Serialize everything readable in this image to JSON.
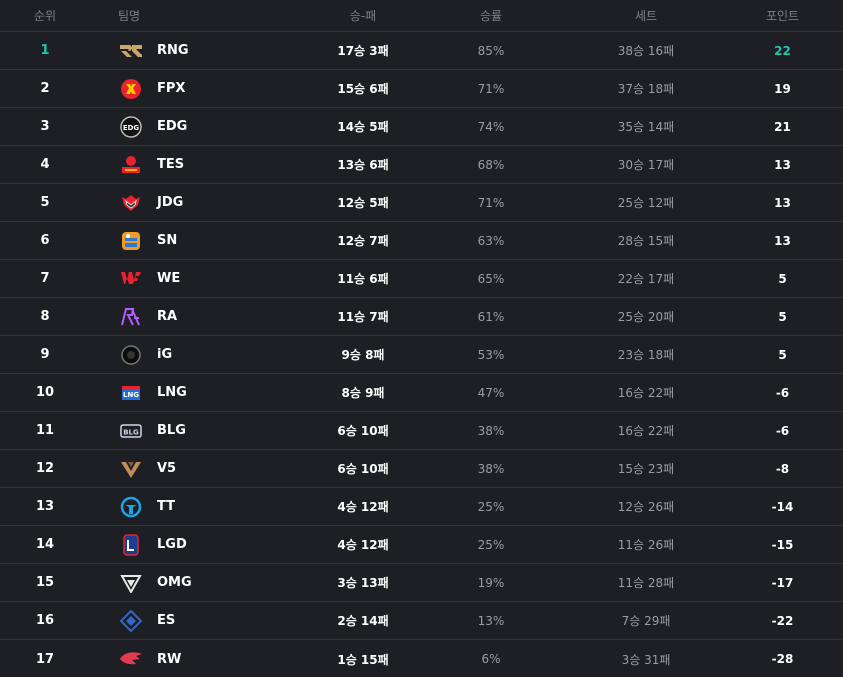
{
  "header": {
    "rank": "순위",
    "team": "팀명",
    "wl": "승-패",
    "rate": "승률",
    "sets": "세트",
    "points": "포인트"
  },
  "colors": {
    "accent": "#1fc7b0",
    "background": "#1e1f24",
    "divider": "#34363d"
  },
  "rows": [
    {
      "rank": "1",
      "team": "RNG",
      "logo": "rng-logo-icon",
      "wl": "17승 3패",
      "rate": "85%",
      "sets": "38승 16패",
      "points": "22",
      "highlight": true
    },
    {
      "rank": "2",
      "team": "FPX",
      "logo": "fpx-logo-icon",
      "wl": "15승 6패",
      "rate": "71%",
      "sets": "37승 18패",
      "points": "19"
    },
    {
      "rank": "3",
      "team": "EDG",
      "logo": "edg-logo-icon",
      "wl": "14승 5패",
      "rate": "74%",
      "sets": "35승 14패",
      "points": "21"
    },
    {
      "rank": "4",
      "team": "TES",
      "logo": "tes-logo-icon",
      "wl": "13승 6패",
      "rate": "68%",
      "sets": "30승 17패",
      "points": "13"
    },
    {
      "rank": "5",
      "team": "JDG",
      "logo": "jdg-logo-icon",
      "wl": "12승 5패",
      "rate": "71%",
      "sets": "25승 12패",
      "points": "13"
    },
    {
      "rank": "6",
      "team": "SN",
      "logo": "sn-logo-icon",
      "wl": "12승 7패",
      "rate": "63%",
      "sets": "28승 15패",
      "points": "13"
    },
    {
      "rank": "7",
      "team": "WE",
      "logo": "we-logo-icon",
      "wl": "11승 6패",
      "rate": "65%",
      "sets": "22승 17패",
      "points": "5"
    },
    {
      "rank": "8",
      "team": "RA",
      "logo": "ra-logo-icon",
      "wl": "11승 7패",
      "rate": "61%",
      "sets": "25승 20패",
      "points": "5"
    },
    {
      "rank": "9",
      "team": "iG",
      "logo": "ig-logo-icon",
      "wl": "9승 8패",
      "rate": "53%",
      "sets": "23승 18패",
      "points": "5"
    },
    {
      "rank": "10",
      "team": "LNG",
      "logo": "lng-logo-icon",
      "wl": "8승 9패",
      "rate": "47%",
      "sets": "16승 22패",
      "points": "-6"
    },
    {
      "rank": "11",
      "team": "BLG",
      "logo": "blg-logo-icon",
      "wl": "6승 10패",
      "rate": "38%",
      "sets": "16승 22패",
      "points": "-6"
    },
    {
      "rank": "12",
      "team": "V5",
      "logo": "v5-logo-icon",
      "wl": "6승 10패",
      "rate": "38%",
      "sets": "15승 23패",
      "points": "-8"
    },
    {
      "rank": "13",
      "team": "TT",
      "logo": "tt-logo-icon",
      "wl": "4승 12패",
      "rate": "25%",
      "sets": "12승 26패",
      "points": "-14"
    },
    {
      "rank": "14",
      "team": "LGD",
      "logo": "lgd-logo-icon",
      "wl": "4승 12패",
      "rate": "25%",
      "sets": "11승 26패",
      "points": "-15"
    },
    {
      "rank": "15",
      "team": "OMG",
      "logo": "omg-logo-icon",
      "wl": "3승 13패",
      "rate": "19%",
      "sets": "11승 28패",
      "points": "-17"
    },
    {
      "rank": "16",
      "team": "ES",
      "logo": "es-logo-icon",
      "wl": "2승 14패",
      "rate": "13%",
      "sets": "7승 29패",
      "points": "-22"
    },
    {
      "rank": "17",
      "team": "RW",
      "logo": "rw-logo-icon",
      "wl": "1승 15패",
      "rate": "6%",
      "sets": "3승 31패",
      "points": "-28"
    }
  ]
}
